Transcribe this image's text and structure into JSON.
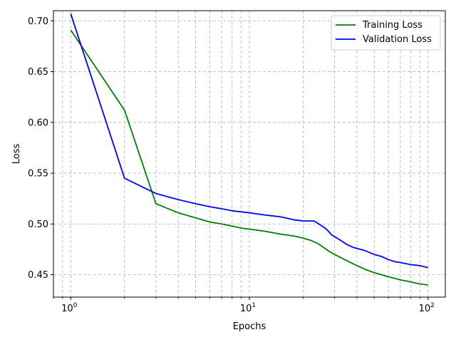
{
  "chart_data": {
    "type": "line",
    "title": "",
    "xlabel": "Epochs",
    "ylabel": "Loss",
    "xscale": "log",
    "xlim": [
      0.8,
      125
    ],
    "ylim": [
      0.428,
      0.71
    ],
    "grid": "both, dashed",
    "legend_position": "top-right",
    "xticks": [
      {
        "value": 1,
        "base": "10",
        "exp": "0"
      },
      {
        "value": 10,
        "base": "10",
        "exp": "1"
      },
      {
        "value": 100,
        "base": "10",
        "exp": "2"
      }
    ],
    "yticks": [
      "0.45",
      "0.50",
      "0.55",
      "0.60",
      "0.65",
      "0.70"
    ],
    "series": [
      {
        "name": "Training Loss",
        "color": "#008000",
        "x": [
          1,
          2,
          3,
          4,
          5,
          6,
          7,
          8,
          9,
          10,
          12,
          15,
          18,
          20,
          22,
          24,
          26,
          28,
          30,
          35,
          40,
          45,
          50,
          55,
          60,
          70,
          80,
          90,
          100
        ],
        "y": [
          0.691,
          0.612,
          0.52,
          0.511,
          0.506,
          0.502,
          0.5,
          0.498,
          0.496,
          0.495,
          0.493,
          0.49,
          0.488,
          0.486,
          0.484,
          0.481,
          0.477,
          0.473,
          0.47,
          0.464,
          0.459,
          0.455,
          0.452,
          0.45,
          0.448,
          0.445,
          0.443,
          0.441,
          0.44
        ]
      },
      {
        "name": "Validation Loss",
        "color": "#0000ff",
        "x": [
          1,
          2,
          3,
          4,
          5,
          6,
          7,
          8,
          9,
          10,
          12,
          15,
          18,
          20,
          22,
          23,
          25,
          27,
          29,
          31,
          33,
          35,
          38,
          40,
          44,
          47,
          50,
          55,
          60,
          65,
          70,
          75,
          80,
          90,
          100
        ],
        "y": [
          0.707,
          0.545,
          0.53,
          0.524,
          0.52,
          0.517,
          0.515,
          0.513,
          0.512,
          0.511,
          0.509,
          0.507,
          0.504,
          0.503,
          0.503,
          0.503,
          0.499,
          0.495,
          0.489,
          0.486,
          0.483,
          0.48,
          0.477,
          0.476,
          0.474,
          0.472,
          0.47,
          0.468,
          0.465,
          0.463,
          0.462,
          0.461,
          0.46,
          0.459,
          0.457
        ]
      }
    ]
  }
}
